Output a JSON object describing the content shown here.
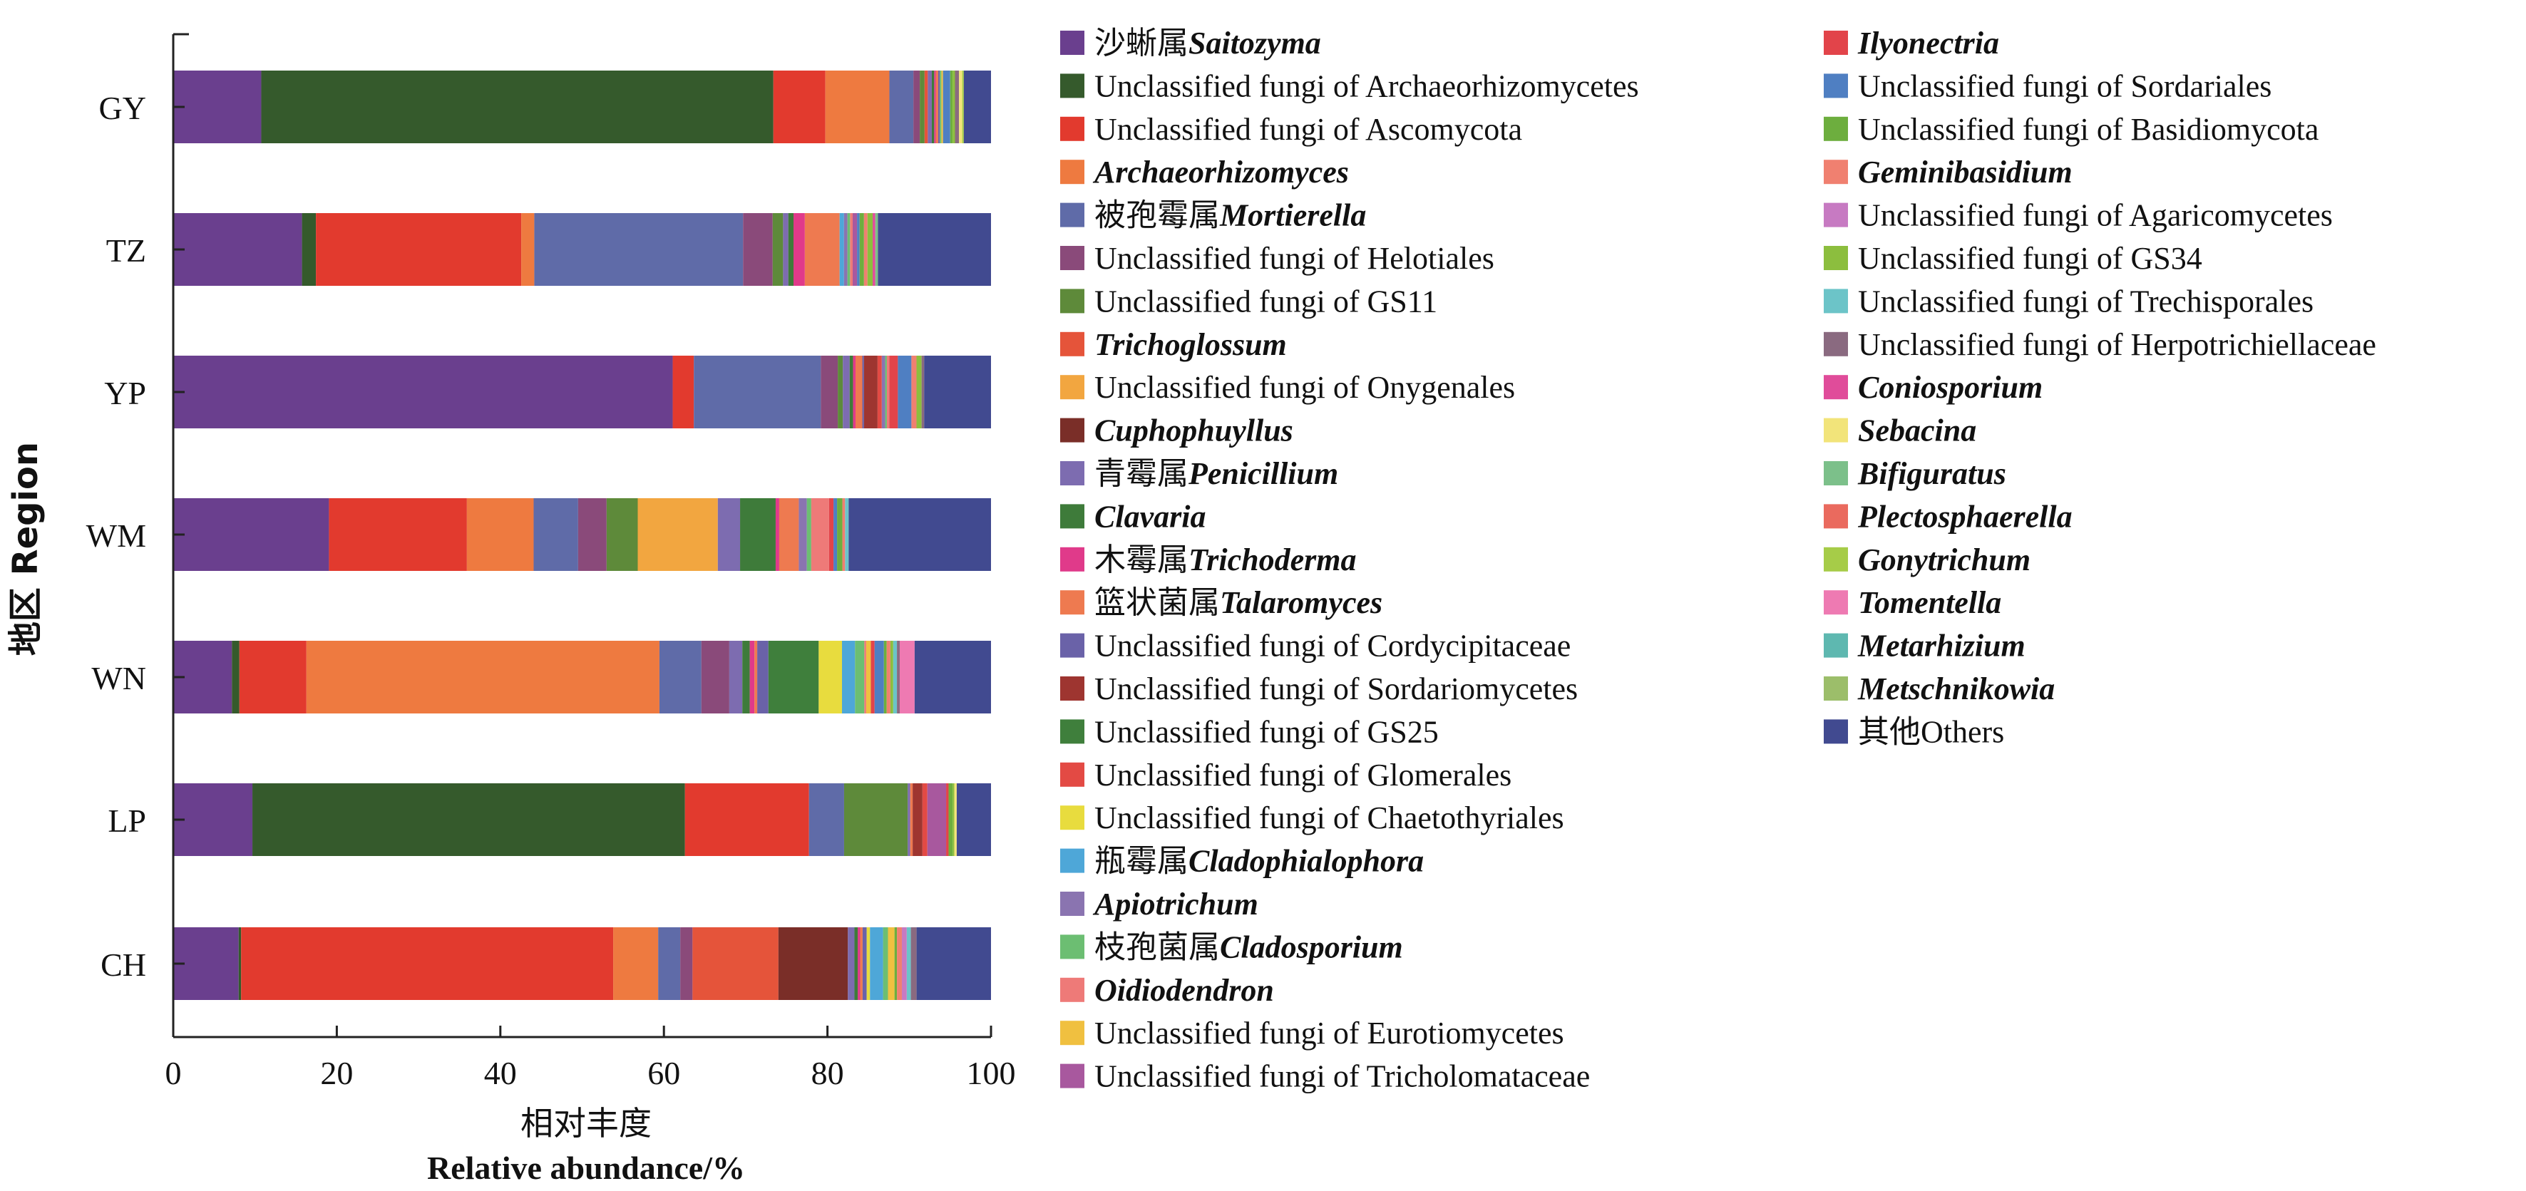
{
  "chart_data": {
    "type": "bar",
    "orientation": "horizontal",
    "stacked": true,
    "xlabel_cn": "相对丰度",
    "xlabel_en": "Relative abundance/%",
    "ylabel": "地区 Region",
    "xlim": [
      0,
      100
    ],
    "xticks": [
      "0",
      "20",
      "40",
      "60",
      "80",
      "100"
    ],
    "grid": false,
    "legend_position": "right",
    "categories": [
      "GY",
      "TZ",
      "YP",
      "WM",
      "WN",
      "LP",
      "CH"
    ],
    "series": [
      {
        "name_cn": "沙蜥属",
        "name": "Saitozyma",
        "italic": true,
        "color": "#6A3F8E",
        "values": [
          11.0,
          14.8,
          59.0,
          17.5,
          6.3,
          9.7,
          8.0
        ]
      },
      {
        "name_cn": "",
        "name": "Unclassified fungi of Archaeorhizomycetes",
        "italic": false,
        "color": "#355A2C",
        "values": [
          64.0,
          1.6,
          0.0,
          0.0,
          0.8,
          53.0,
          0.3
        ]
      },
      {
        "name_cn": "",
        "name": "Unclassified fungi of Ascomycota",
        "italic": false,
        "color": "#E23A2E",
        "values": [
          6.5,
          23.6,
          2.5,
          15.5,
          7.2,
          15.2,
          45.5
        ]
      },
      {
        "name_cn": "",
        "name": "Archaeorhizomyces",
        "italic": true,
        "color": "#EE7A40",
        "values": [
          8.0,
          1.5,
          0.0,
          7.5,
          37.9,
          0.0,
          5.5
        ]
      },
      {
        "name_cn": "被孢霉属",
        "name": "Mortierella",
        "italic": true,
        "color": "#5F6BA8",
        "values": [
          3.0,
          24.0,
          15.0,
          5.0,
          4.5,
          4.3,
          2.7
        ]
      },
      {
        "name_cn": "",
        "name": "Unclassified fungi of Helotiales",
        "italic": false,
        "color": "#8A4A7A",
        "values": [
          0.8,
          3.4,
          2.0,
          3.2,
          3.0,
          0.0,
          1.5
        ]
      },
      {
        "name_cn": "",
        "name": "Unclassified fungi of GS11",
        "italic": false,
        "color": "#5E8A3A",
        "values": [
          0.6,
          1.2,
          0.6,
          3.5,
          0.0,
          7.8,
          0.0
        ]
      },
      {
        "name_cn": "",
        "name": "Trichoglossum",
        "italic": true,
        "color": "#E5543A",
        "values": [
          0.4,
          0.0,
          0.0,
          0.0,
          0.0,
          0.0,
          10.5
        ]
      },
      {
        "name_cn": "",
        "name": "Unclassified fungi of Onygenales",
        "italic": false,
        "color": "#F2A640",
        "values": [
          0.0,
          0.0,
          0.0,
          9.0,
          0.0,
          0.0,
          0.0
        ]
      },
      {
        "name_cn": "",
        "name": "Cuphophuyllus",
        "italic": true,
        "color": "#7A2E28",
        "values": [
          0.0,
          0.0,
          0.0,
          0.0,
          0.0,
          0.0,
          8.5
        ]
      },
      {
        "name_cn": "青霉属",
        "name": "Penicillium",
        "italic": true,
        "color": "#7D6CB0",
        "values": [
          0.5,
          0.6,
          0.8,
          2.5,
          1.4,
          0.3,
          0.8
        ]
      },
      {
        "name_cn": "",
        "name": "Clavaria",
        "italic": true,
        "color": "#3E7B3A",
        "values": [
          0.3,
          0.6,
          0.4,
          4.0,
          0.8,
          0.0,
          0.4
        ]
      },
      {
        "name_cn": "木霉属",
        "name": "Trichoderma",
        "italic": true,
        "color": "#E03A8A",
        "values": [
          0.2,
          1.3,
          0.3,
          0.4,
          0.5,
          0.0,
          0.3
        ]
      },
      {
        "name_cn": "篮状菌属",
        "name": "Talaromyces",
        "italic": true,
        "color": "#EE7A50",
        "values": [
          0.3,
          4.0,
          0.8,
          2.2,
          0.3,
          0.3,
          0.3
        ]
      },
      {
        "name_cn": "",
        "name": "Unclassified fungi of Cordycipitaceae",
        "italic": false,
        "color": "#6A62A8",
        "values": [
          0.2,
          0.0,
          0.2,
          0.0,
          1.2,
          0.0,
          0.5
        ]
      },
      {
        "name_cn": "",
        "name": "Unclassified fungi of Sordariomycetes",
        "italic": false,
        "color": "#9E3530",
        "values": [
          0.0,
          0.0,
          1.6,
          0.0,
          0.0,
          1.2,
          0.0
        ]
      },
      {
        "name_cn": "",
        "name": "Unclassified fungi of GS25",
        "italic": false,
        "color": "#3F7F3C",
        "values": [
          0.0,
          0.0,
          0.0,
          0.0,
          5.4,
          0.0,
          0.0
        ]
      },
      {
        "name_cn": "",
        "name": "Unclassified fungi of Glomerales",
        "italic": false,
        "color": "#E34A44",
        "values": [
          0.0,
          0.0,
          0.5,
          0.0,
          0.0,
          0.6,
          0.0
        ]
      },
      {
        "name_cn": "",
        "name": "Unclassified fungi of Chaetothyriales",
        "italic": false,
        "color": "#E8DC3E",
        "values": [
          0.0,
          0.0,
          0.0,
          0.0,
          2.5,
          0.0,
          0.4
        ]
      },
      {
        "name_cn": "瓶霉属",
        "name": "Cladophialophora",
        "italic": true,
        "color": "#4EA7D8",
        "values": [
          0.0,
          0.5,
          0.0,
          0.0,
          1.4,
          0.0,
          1.6
        ]
      },
      {
        "name_cn": "",
        "name": "Apiotrichum",
        "italic": true,
        "color": "#8A74B0",
        "values": [
          0.0,
          0.4,
          0.4,
          0.9,
          0.0,
          0.0,
          0.0
        ]
      },
      {
        "name_cn": "枝孢菌属",
        "name": "Cladosporium",
        "italic": true,
        "color": "#6CBE72",
        "values": [
          0.2,
          0.3,
          0.2,
          0.5,
          1.0,
          0.0,
          0.6
        ]
      },
      {
        "name_cn": "",
        "name": "Oidiodendron",
        "italic": true,
        "color": "#EE7A78",
        "values": [
          0.0,
          0.3,
          0.3,
          2.0,
          0.2,
          0.0,
          0.0
        ]
      },
      {
        "name_cn": "",
        "name": "Unclassified fungi of Eurotiomycetes",
        "italic": false,
        "color": "#F0C040",
        "values": [
          0.2,
          0.0,
          0.0,
          0.0,
          0.5,
          0.0,
          0.8
        ]
      },
      {
        "name_cn": "",
        "name": "Unclassified fungi of Tricholomataceae",
        "italic": false,
        "color": "#A8589E",
        "values": [
          0.0,
          0.5,
          0.0,
          0.0,
          0.0,
          2.3,
          0.0
        ]
      },
      {
        "name_cn": "",
        "name": "Ilyonectria",
        "italic": true,
        "color": "#E2444A",
        "values": [
          0.0,
          0.0,
          1.0,
          0.5,
          0.4,
          0.3,
          0.0
        ]
      },
      {
        "name_cn": "",
        "name": "Unclassified fungi of Sordariales",
        "italic": false,
        "color": "#4F7FC2",
        "values": [
          0.9,
          0.3,
          1.6,
          0.4,
          1.0,
          0.0,
          0.0
        ]
      },
      {
        "name_cn": "",
        "name": "Unclassified fungi of Basidiomycota",
        "italic": false,
        "color": "#6DAE3E",
        "values": [
          0.3,
          0.5,
          0.0,
          0.6,
          0.3,
          0.5,
          0.3
        ]
      },
      {
        "name_cn": "",
        "name": "Geminibasidium",
        "italic": true,
        "color": "#F08070",
        "values": [
          0.0,
          0.4,
          0.6,
          0.3,
          0.4,
          0.0,
          0.6
        ]
      },
      {
        "name_cn": "",
        "name": "Unclassified fungi of Agaricomycetes",
        "italic": false,
        "color": "#C77AC2",
        "values": [
          0.0,
          0.0,
          0.0,
          0.0,
          0.0,
          0.0,
          0.6
        ]
      },
      {
        "name_cn": "",
        "name": "Unclassified fungi of GS34",
        "italic": false,
        "color": "#8CBE3E",
        "values": [
          0.3,
          0.6,
          0.6,
          0.0,
          0.3,
          0.2,
          0.0
        ]
      },
      {
        "name_cn": "",
        "name": "Unclassified fungi of Trechisporales",
        "italic": false,
        "color": "#6CC4C8",
        "values": [
          0.0,
          0.0,
          0.0,
          0.4,
          0.4,
          0.0,
          0.5
        ]
      },
      {
        "name_cn": "",
        "name": "Unclassified fungi of Herpotrichiellaceae",
        "italic": false,
        "color": "#8A6A80",
        "values": [
          0.5,
          0.0,
          0.3,
          0.0,
          0.3,
          0.0,
          0.7
        ]
      },
      {
        "name_cn": "",
        "name": "Coniosporium",
        "italic": true,
        "color": "#E04C9A",
        "values": [
          0.0,
          0.3,
          0.0,
          0.0,
          0.0,
          0.0,
          0.0
        ]
      },
      {
        "name_cn": "",
        "name": "Sebacina",
        "italic": true,
        "color": "#F2E47A",
        "values": [
          0.4,
          0.0,
          0.0,
          0.0,
          0.0,
          0.3,
          0.0
        ]
      },
      {
        "name_cn": "",
        "name": "Bifiguratus",
        "italic": true,
        "color": "#7CC08A",
        "values": [
          0.0,
          0.3,
          0.0,
          0.0,
          0.0,
          0.0,
          0.0
        ]
      },
      {
        "name_cn": "",
        "name": "Plectosphaerella",
        "italic": true,
        "color": "#EA6A5E",
        "values": [
          0.0,
          0.0,
          0.0,
          0.0,
          0.0,
          0.0,
          0.0
        ]
      },
      {
        "name_cn": "",
        "name": "Gonytrichum",
        "italic": true,
        "color": "#A6CC48",
        "values": [
          0.2,
          0.0,
          0.0,
          0.0,
          0.0,
          0.0,
          0.0
        ]
      },
      {
        "name_cn": "",
        "name": "Tomentella",
        "italic": true,
        "color": "#EE7AB2",
        "values": [
          0.0,
          0.0,
          0.0,
          0.0,
          1.6,
          0.0,
          0.0
        ]
      },
      {
        "name_cn": "",
        "name": "Metarhizium",
        "italic": true,
        "color": "#5EB8B0",
        "values": [
          0.0,
          0.0,
          0.0,
          0.0,
          0.0,
          0.0,
          0.0
        ]
      },
      {
        "name_cn": "",
        "name": "Metschnikowia",
        "italic": true,
        "color": "#9CBE6A",
        "values": [
          0.0,
          0.0,
          0.0,
          0.0,
          0.0,
          0.0,
          0.0
        ]
      },
      {
        "name_cn": "其他",
        "name": "Others",
        "italic": false,
        "color": "#414A90",
        "values": [
          3.4,
          13.0,
          7.9,
          16.0,
          8.2,
          4.2,
          9.1
        ]
      }
    ]
  }
}
